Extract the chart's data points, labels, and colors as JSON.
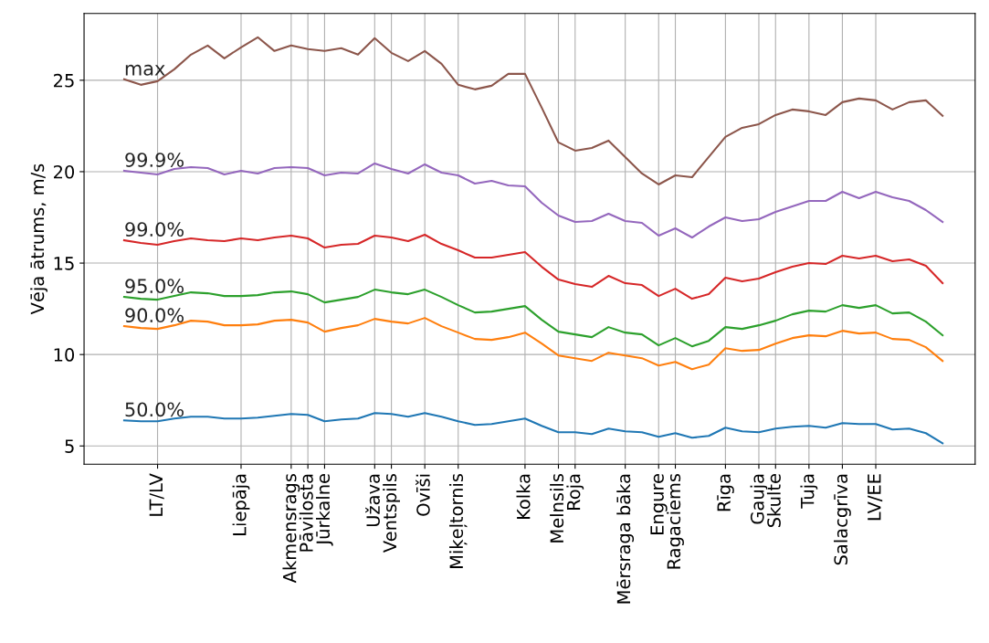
{
  "chart_data": {
    "type": "line",
    "ylabel": "Vēja ātrums, m/s",
    "ylim": [
      4,
      28.65
    ],
    "yticks": [
      5,
      10,
      15,
      20,
      25
    ],
    "grid": true,
    "legend": false,
    "categories": [
      null,
      null,
      "LT/LV",
      null,
      null,
      null,
      null,
      "Liepāja",
      null,
      null,
      "Akmensrags",
      "Pāvilosta",
      "Jūrkalne",
      null,
      null,
      "Užava",
      "Ventspils",
      null,
      "Ovīši",
      null,
      "Miķeļtornis",
      null,
      null,
      null,
      "Kolka",
      null,
      "Melnsils",
      "Roja",
      null,
      null,
      "Mērsraga bāka",
      null,
      "Engure",
      "Ragaciems",
      null,
      null,
      "Rīga",
      null,
      "Gauja",
      "Skulte",
      null,
      "Tuja",
      null,
      "Salacgrīva",
      null,
      "LV/EE",
      null,
      null,
      null,
      null
    ],
    "series": [
      {
        "name": "50.0%",
        "color": "#1f77b4",
        "values": [
          6.4,
          6.35,
          6.35,
          6.5,
          6.6,
          6.6,
          6.5,
          6.5,
          6.55,
          6.65,
          6.75,
          6.7,
          6.35,
          6.45,
          6.5,
          6.8,
          6.75,
          6.6,
          6.8,
          6.6,
          6.35,
          6.15,
          6.2,
          6.35,
          6.5,
          6.1,
          5.75,
          5.75,
          5.65,
          5.95,
          5.8,
          5.75,
          5.5,
          5.7,
          5.45,
          5.55,
          6.0,
          5.8,
          5.75,
          5.95,
          6.05,
          6.1,
          6.0,
          6.25,
          6.2,
          6.2,
          5.9,
          5.95,
          5.7,
          5.15
        ]
      },
      {
        "name": "90.0%",
        "color": "#ff7f0e",
        "values": [
          11.55,
          11.45,
          11.4,
          11.6,
          11.85,
          11.8,
          11.6,
          11.6,
          11.65,
          11.85,
          11.9,
          11.75,
          11.25,
          11.45,
          11.6,
          11.95,
          11.8,
          11.7,
          12.0,
          11.55,
          11.2,
          10.85,
          10.8,
          10.95,
          11.2,
          10.6,
          9.95,
          9.8,
          9.65,
          10.1,
          9.95,
          9.8,
          9.4,
          9.6,
          9.2,
          9.45,
          10.35,
          10.2,
          10.25,
          10.6,
          10.9,
          11.05,
          11.0,
          11.3,
          11.15,
          11.2,
          10.85,
          10.8,
          10.4,
          9.65
        ]
      },
      {
        "name": "95.0%",
        "color": "#2ca02c",
        "values": [
          13.15,
          13.05,
          13.0,
          13.2,
          13.4,
          13.35,
          13.2,
          13.2,
          13.25,
          13.4,
          13.45,
          13.3,
          12.85,
          13.0,
          13.15,
          13.55,
          13.4,
          13.3,
          13.55,
          13.15,
          12.7,
          12.3,
          12.35,
          12.5,
          12.65,
          11.9,
          11.25,
          11.1,
          10.95,
          11.5,
          11.2,
          11.1,
          10.5,
          10.9,
          10.45,
          10.75,
          11.5,
          11.4,
          11.6,
          11.85,
          12.2,
          12.4,
          12.35,
          12.7,
          12.55,
          12.7,
          12.25,
          12.3,
          11.8,
          11.05
        ]
      },
      {
        "name": "99.0%",
        "color": "#d62728",
        "values": [
          16.25,
          16.1,
          16.0,
          16.2,
          16.35,
          16.25,
          16.2,
          16.35,
          16.25,
          16.4,
          16.5,
          16.35,
          15.85,
          16.0,
          16.05,
          16.5,
          16.4,
          16.2,
          16.55,
          16.05,
          15.7,
          15.3,
          15.3,
          15.45,
          15.6,
          14.8,
          14.1,
          13.85,
          13.7,
          14.3,
          13.9,
          13.8,
          13.2,
          13.6,
          13.05,
          13.3,
          14.2,
          14.0,
          14.15,
          14.5,
          14.8,
          15.0,
          14.95,
          15.4,
          15.25,
          15.4,
          15.1,
          15.2,
          14.85,
          13.9
        ]
      },
      {
        "name": "99.9%",
        "color": "#9467bd",
        "values": [
          20.05,
          19.95,
          19.85,
          20.15,
          20.25,
          20.2,
          19.85,
          20.05,
          19.9,
          20.2,
          20.25,
          20.2,
          19.8,
          19.95,
          19.9,
          20.45,
          20.15,
          19.9,
          20.4,
          19.95,
          19.8,
          19.35,
          19.5,
          19.25,
          19.2,
          18.3,
          17.6,
          17.25,
          17.3,
          17.7,
          17.3,
          17.2,
          16.5,
          16.9,
          16.4,
          17.0,
          17.5,
          17.3,
          17.4,
          17.8,
          18.1,
          18.4,
          18.4,
          18.9,
          18.55,
          18.9,
          18.6,
          18.4,
          17.9,
          17.25
        ]
      },
      {
        "name": "max",
        "color": "#8c564b",
        "values": [
          25.05,
          24.75,
          24.95,
          25.6,
          26.4,
          26.9,
          26.2,
          26.8,
          27.35,
          26.6,
          26.9,
          26.7,
          26.6,
          26.75,
          26.4,
          27.3,
          26.5,
          26.05,
          26.6,
          25.9,
          24.75,
          24.5,
          24.7,
          25.35,
          25.35,
          23.5,
          21.6,
          21.15,
          21.3,
          21.7,
          20.8,
          19.9,
          19.3,
          19.8,
          19.7,
          20.8,
          21.9,
          22.4,
          22.6,
          23.1,
          23.4,
          23.3,
          23.1,
          23.8,
          24.0,
          23.9,
          23.4,
          23.8,
          23.9,
          23.05
        ]
      }
    ]
  }
}
